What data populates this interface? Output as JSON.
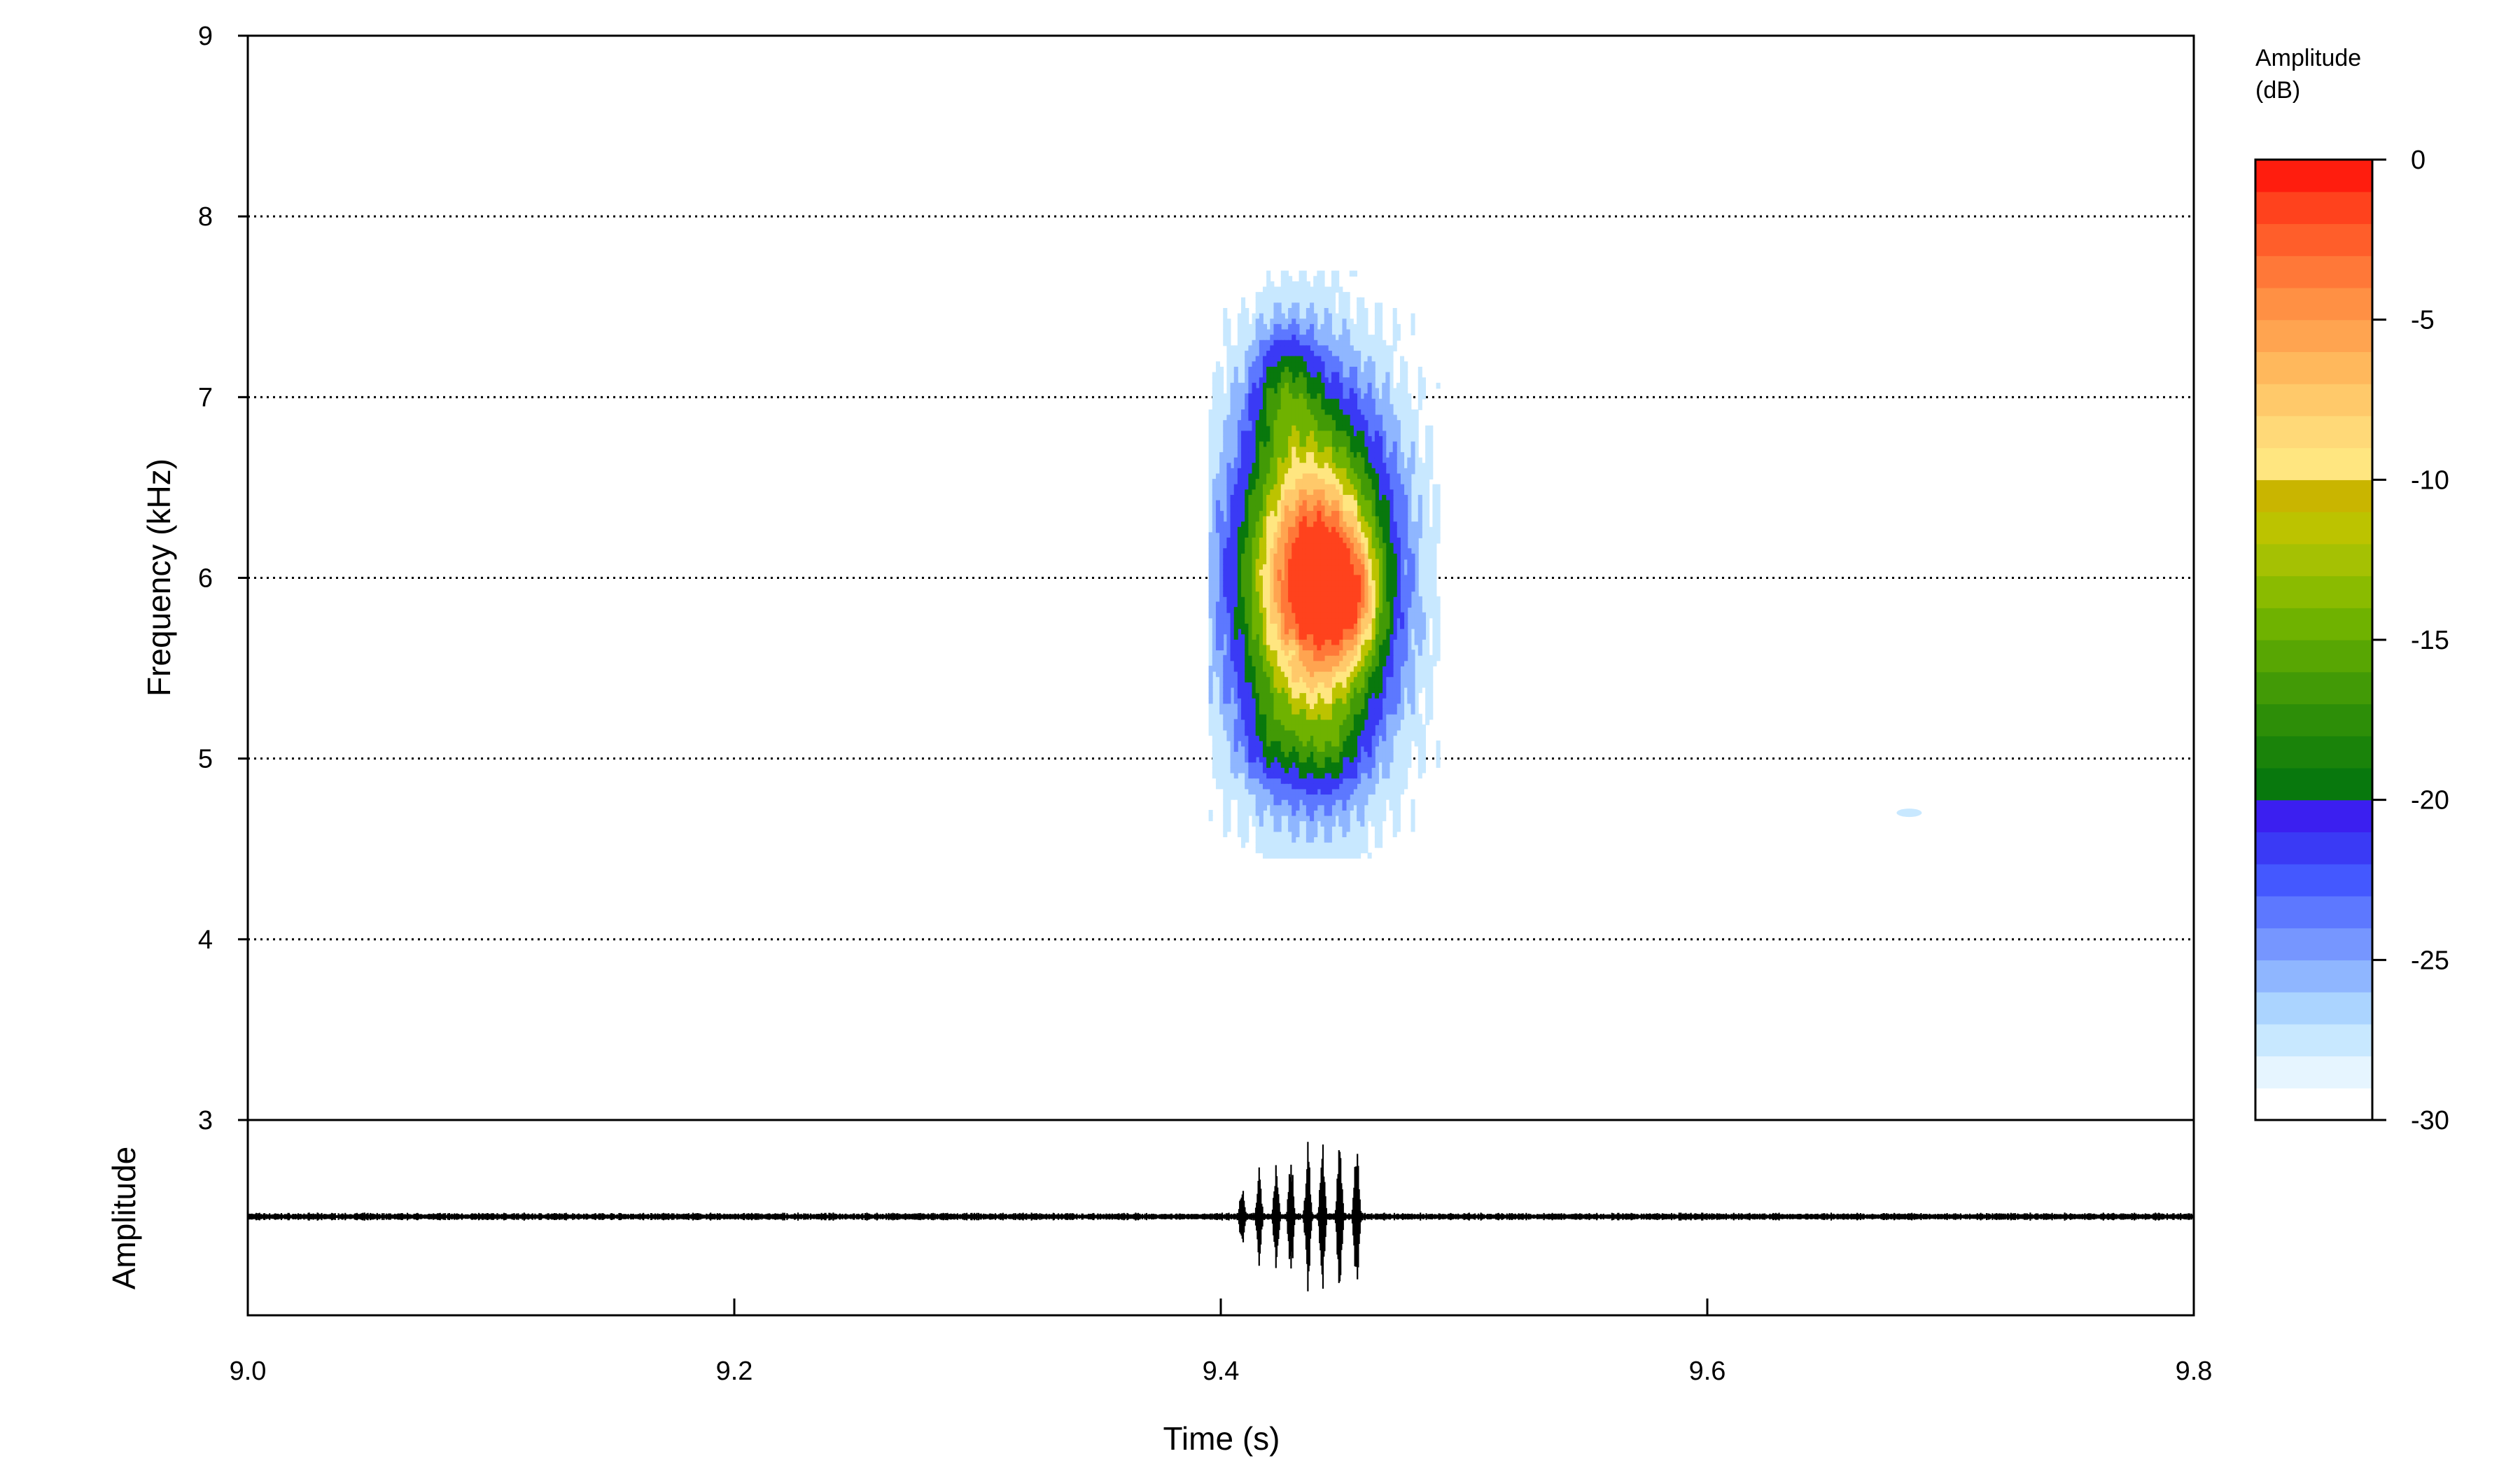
{
  "chart_data": {
    "type": "heatmap",
    "title": "",
    "xlabel": "Time (s)",
    "ylabel": "Frequency (kHz)",
    "amplitude_label": "Amplitude",
    "xlim": [
      9.0,
      9.8
    ],
    "ylim": [
      3,
      9
    ],
    "x_ticks": [
      "9.0",
      "9.2",
      "9.4",
      "9.6",
      "9.8"
    ],
    "y_ticks": [
      "3",
      "4",
      "5",
      "6",
      "7",
      "8",
      "9"
    ],
    "grid": "horizontal dotted",
    "colorbar": {
      "title_line1": "Amplitude",
      "title_line2": "(dB)",
      "range": [
        -30,
        0
      ],
      "ticks": [
        "0",
        "-5",
        "-10",
        "-15",
        "-20",
        "-25",
        "-30"
      ],
      "colors": [
        "#ffffff",
        "#e6f5ff",
        "#c8e8ff",
        "#abd4ff",
        "#8fb6ff",
        "#7696ff",
        "#5d78ff",
        "#4458ff",
        "#3a3af5",
        "#3b1ff0",
        "#08780d",
        "#1a830a",
        "#2d8e08",
        "#429a06",
        "#58a603",
        "#6fb200",
        "#8abb00",
        "#a5c103",
        "#bcc300",
        "#c9b500",
        "#ffe680",
        "#ffd978",
        "#ffc96a",
        "#ffb85c",
        "#ffa450",
        "#ff9044",
        "#ff7838",
        "#ff5e2a",
        "#ff421d",
        "#ff1d0e"
      ]
    },
    "spectrogram": {
      "time_range": [
        9.41,
        9.475
      ],
      "freq_range": [
        4.6,
        7.5
      ],
      "peak": {
        "time": 9.455,
        "freq": 5.9,
        "dB": -1
      }
    },
    "waveform": {
      "pulses": [
        9.408,
        9.415,
        9.422,
        9.428,
        9.435,
        9.441,
        9.448,
        9.455
      ],
      "pulse_amplitudes": [
        0.38,
        0.55,
        0.68,
        0.78,
        0.86,
        0.93,
        0.97,
        1.0
      ]
    }
  }
}
